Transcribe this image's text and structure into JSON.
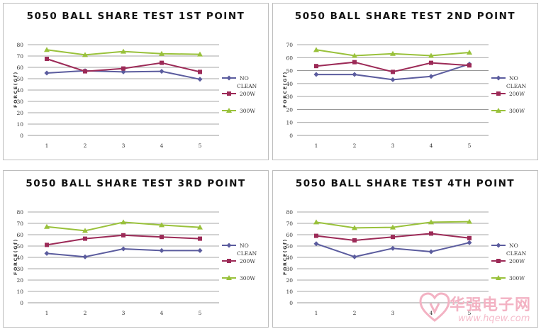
{
  "charts": [
    {
      "title": "5050 BALL SHARE TEST 1ST POINT",
      "ylabel": "FORCE(Gf)",
      "yticks": [
        0,
        10,
        20,
        30,
        40,
        50,
        60,
        70,
        80
      ],
      "ylim": [
        0,
        80
      ],
      "categories": [
        "1",
        "2",
        "3",
        "4",
        "5"
      ],
      "series": [
        {
          "name": "NO CLEAN",
          "color": "#5b5c9e",
          "marker": "diamond",
          "values": [
            55,
            57,
            56,
            56.5,
            49.5
          ]
        },
        {
          "name": "200W",
          "color": "#9c2a57",
          "marker": "square",
          "values": [
            67.5,
            56.5,
            59,
            64,
            56
          ]
        },
        {
          "name": "300W",
          "color": "#99c13b",
          "marker": "triangle",
          "values": [
            75.5,
            71,
            74,
            72,
            71.5
          ]
        }
      ]
    },
    {
      "title": "5050 BALL SHARE TEST 2ND POINT",
      "ylabel": "FORCE(Gf)",
      "yticks": [
        0,
        10,
        20,
        30,
        40,
        50,
        60,
        70
      ],
      "ylim": [
        0,
        70
      ],
      "categories": [
        "1",
        "2",
        "3",
        "4",
        "5"
      ],
      "series": [
        {
          "name": "NO CLEAN",
          "color": "#5b5c9e",
          "marker": "diamond",
          "values": [
            47,
            47,
            43,
            45.5,
            55
          ]
        },
        {
          "name": "200W",
          "color": "#9c2a57",
          "marker": "square",
          "values": [
            53.5,
            56.5,
            49,
            56,
            54
          ]
        },
        {
          "name": "300W",
          "color": "#99c13b",
          "marker": "triangle",
          "values": [
            66,
            61.5,
            63,
            61.5,
            64
          ]
        }
      ]
    },
    {
      "title": "5050 BALL SHARE TEST 3RD POINT",
      "ylabel": "FORCE(Gf)",
      "yticks": [
        0,
        10,
        20,
        30,
        40,
        50,
        60,
        70,
        80
      ],
      "ylim": [
        0,
        80
      ],
      "categories": [
        "1",
        "2",
        "3",
        "4",
        "5"
      ],
      "series": [
        {
          "name": "NO CLEAN",
          "color": "#5b5c9e",
          "marker": "diamond",
          "values": [
            43.5,
            40.5,
            47.5,
            46,
            46
          ]
        },
        {
          "name": "200W",
          "color": "#9c2a57",
          "marker": "square",
          "values": [
            51,
            56.5,
            59.5,
            58,
            56.5
          ]
        },
        {
          "name": "300W",
          "color": "#99c13b",
          "marker": "triangle",
          "values": [
            67,
            63.5,
            71,
            68.5,
            66.5
          ]
        }
      ]
    },
    {
      "title": "5050 BALL SHARE TEST 4TH POINT",
      "ylabel": "FORCE(Gf)",
      "yticks": [
        0,
        10,
        20,
        30,
        40,
        50,
        60,
        70,
        80
      ],
      "ylim": [
        0,
        80
      ],
      "categories": [
        "1",
        "2",
        "3",
        "4",
        "5"
      ],
      "series": [
        {
          "name": "NO CLEAN",
          "color": "#5b5c9e",
          "marker": "diamond",
          "values": [
            52,
            40.5,
            48,
            45,
            53
          ]
        },
        {
          "name": "200W",
          "color": "#9c2a57",
          "marker": "square",
          "values": [
            59,
            55,
            58,
            61,
            57
          ]
        },
        {
          "name": "300W",
          "color": "#99c13b",
          "marker": "triangle",
          "values": [
            71,
            66,
            66.5,
            71,
            71.5
          ]
        }
      ]
    }
  ],
  "watermark": {
    "text": "华强电子网",
    "url": "www.hqew.com",
    "color": "#f3b2c3"
  }
}
